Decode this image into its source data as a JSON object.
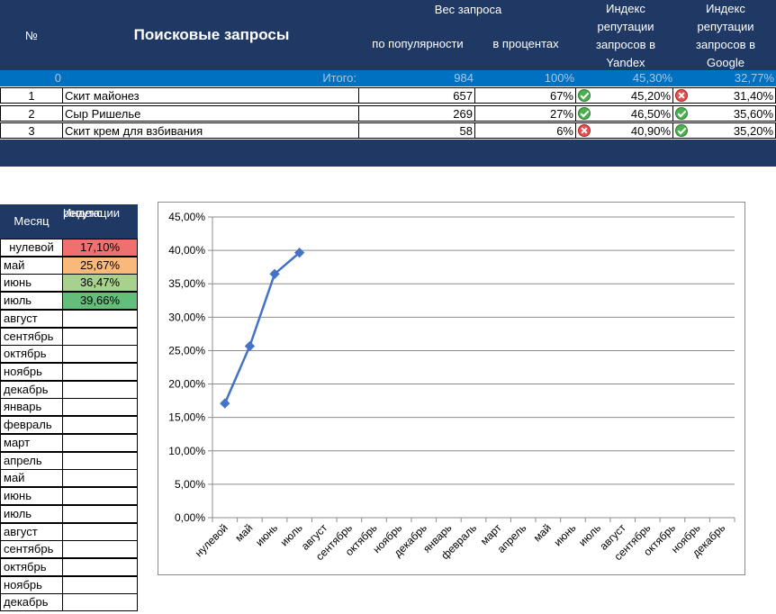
{
  "header": {
    "num_label": "№",
    "queries_label": "Поисковые запросы",
    "weight_label": "Вес запроса",
    "popularity_label": "по популярности",
    "percent_label": "в процентах",
    "yandex_label_lines": [
      "Индекс",
      "репутации",
      "запросов в",
      "Yandex"
    ],
    "google_label_lines": [
      "Индекс",
      "репутации",
      "запросов в",
      "Google"
    ]
  },
  "total_row": {
    "num": "0",
    "label": "Итого:",
    "popularity": "984",
    "percent": "100%",
    "yandex": "45,30%",
    "google": "32,77%"
  },
  "queries": [
    {
      "num": "1",
      "name": "Скит майонез",
      "popularity": "657",
      "percent": "67%",
      "icon1": "check-icon",
      "yandex": "45,20%",
      "icon2": "cross-icon",
      "google": "31,40%"
    },
    {
      "num": "2",
      "name": "Сыр Ришелье",
      "popularity": "269",
      "percent": "27%",
      "icon1": "check-icon",
      "yandex": "46,50%",
      "icon2": "check-icon",
      "google": "35,60%"
    },
    {
      "num": "3",
      "name": "Скит крем для взбивания",
      "popularity": "58",
      "percent": "6%",
      "icon1": "cross-icon",
      "yandex": "40,90%",
      "icon2": "check-icon",
      "google": "35,20%"
    }
  ],
  "month_table": {
    "month_header": "Месяц",
    "index_header_lines": [
      "Индекс",
      "репутации"
    ],
    "rows": [
      {
        "month": "нулевой",
        "value": "17,10%",
        "color": "#f07070"
      },
      {
        "month": "май",
        "value": "25,67%",
        "color": "#f9b97a"
      },
      {
        "month": "июнь",
        "value": "36,47%",
        "color": "#a9d18e"
      },
      {
        "month": "июль",
        "value": "39,66%",
        "color": "#63be7b"
      },
      {
        "month": "август",
        "value": "",
        "color": ""
      },
      {
        "month": "сентябрь",
        "value": "",
        "color": ""
      },
      {
        "month": "октябрь",
        "value": "",
        "color": ""
      },
      {
        "month": "ноябрь",
        "value": "",
        "color": ""
      },
      {
        "month": "декабрь",
        "value": "",
        "color": ""
      },
      {
        "month": "январь",
        "value": "",
        "color": ""
      },
      {
        "month": "февраль",
        "value": "",
        "color": ""
      },
      {
        "month": "март",
        "value": "",
        "color": ""
      },
      {
        "month": "апрель",
        "value": "",
        "color": ""
      },
      {
        "month": "май",
        "value": "",
        "color": ""
      },
      {
        "month": "июнь",
        "value": "",
        "color": ""
      },
      {
        "month": "июль",
        "value": "",
        "color": ""
      },
      {
        "month": "август",
        "value": "",
        "color": ""
      },
      {
        "month": "сентябрь",
        "value": "",
        "color": ""
      },
      {
        "month": "октябрь",
        "value": "",
        "color": ""
      },
      {
        "month": "ноябрь",
        "value": "",
        "color": ""
      },
      {
        "month": "декабрь",
        "value": "",
        "color": ""
      }
    ]
  },
  "chart_data": {
    "type": "line",
    "title": "",
    "xlabel": "",
    "ylabel": "",
    "categories": [
      "нулевой",
      "май",
      "июнь",
      "июль",
      "август",
      "сентябрь",
      "октябрь",
      "ноябрь",
      "декабрь",
      "январь",
      "февраль",
      "март",
      "апрель",
      "май",
      "июнь",
      "июль",
      "август",
      "сентябрь",
      "октябрь",
      "ноябрь",
      "декабрь"
    ],
    "series": [
      {
        "values": [
          0.171,
          0.2567,
          0.3647,
          0.3966,
          null,
          null,
          null,
          null,
          null,
          null,
          null,
          null,
          null,
          null,
          null,
          null,
          null,
          null,
          null,
          null,
          null
        ],
        "color": "#4472c4"
      }
    ],
    "ylim": [
      0,
      0.45
    ],
    "y_ticks": [
      "0,00%",
      "5,00%",
      "10,00%",
      "15,00%",
      "20,00%",
      "25,00%",
      "30,00%",
      "35,00%",
      "40,00%",
      "45,00%"
    ],
    "grid": true,
    "legend": "none"
  }
}
